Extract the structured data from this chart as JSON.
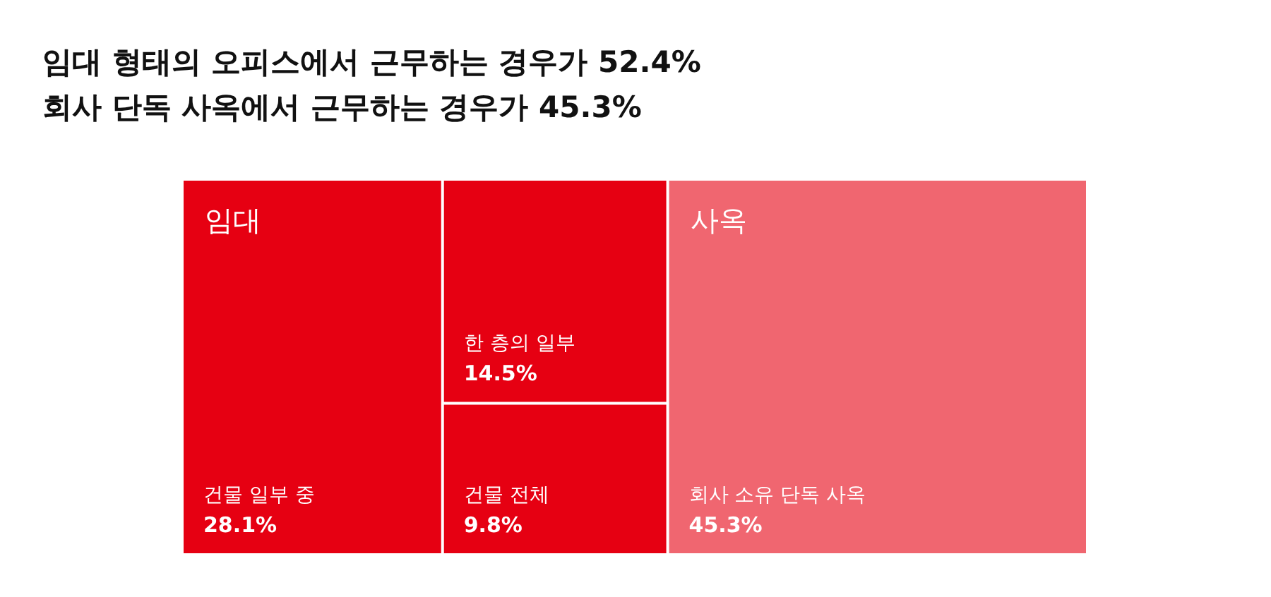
{
  "chart_data": {
    "type": "other",
    "title": "임대 형태의 오피스에서 근무하는 경우가 52.4%",
    "subtitle": "회사 단독 사옥에서 근무하는 경우가 45.3%",
    "categories": [
      "건물 일부 중",
      "한 층의 일부",
      "건물 전체",
      "회사 소유 단독 사옥"
    ],
    "series": [
      {
        "name": "임대",
        "color": "#e60012",
        "values": [
          28.1,
          14.5,
          9.8,
          null
        ],
        "value_labels": [
          "28.1%",
          "14.5%",
          "9.8%",
          null
        ]
      },
      {
        "name": "사옥",
        "color": "#f06670",
        "values": [
          null,
          null,
          null,
          45.3
        ],
        "value_labels": [
          null,
          null,
          null,
          "45.3%"
        ]
      }
    ]
  }
}
